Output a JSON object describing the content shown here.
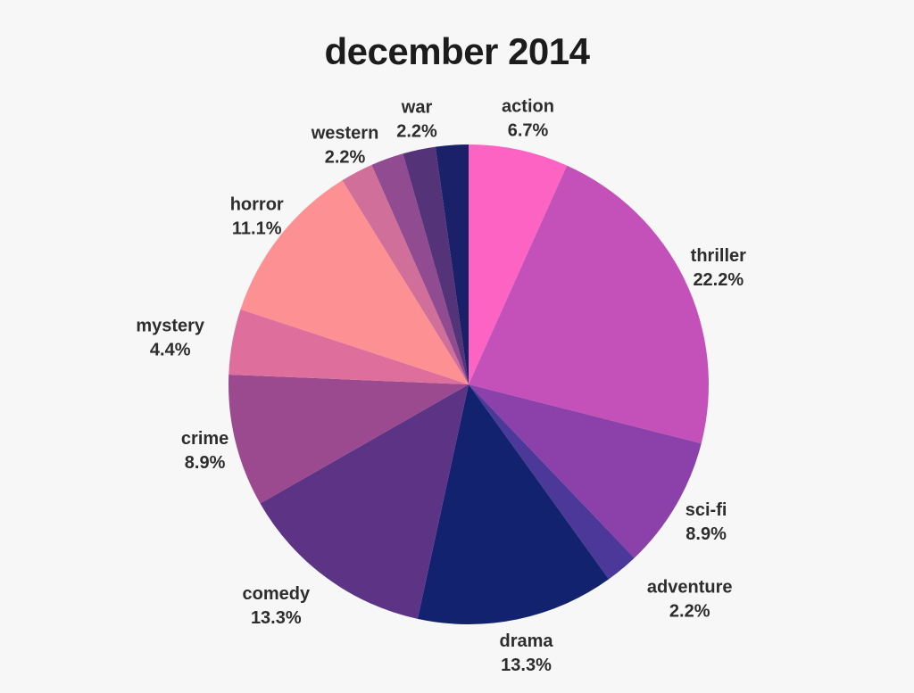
{
  "chart_data": {
    "type": "pie",
    "title": "december 2014",
    "background": "#F7F7F8",
    "text_color": "#2D2D2D",
    "start_angle_deg": 90,
    "direction": "clockwise",
    "legend": "none",
    "slices": [
      {
        "label": "action",
        "pct_text": "6.7%",
        "value": 6.7,
        "color": "#FC63C2"
      },
      {
        "label": "thriller",
        "pct_text": "22.2%",
        "value": 22.2,
        "color": "#C351B9"
      },
      {
        "label": "sci-fi",
        "pct_text": "8.9%",
        "value": 8.9,
        "color": "#8B41A9"
      },
      {
        "label": "adventure",
        "pct_text": "2.2%",
        "value": 2.2,
        "color": "#4C3899"
      },
      {
        "label": "drama",
        "pct_text": "13.3%",
        "value": 13.3,
        "color": "#12226E"
      },
      {
        "label": "comedy",
        "pct_text": "13.3%",
        "value": 13.3,
        "color": "#5D3386"
      },
      {
        "label": "crime",
        "pct_text": "8.9%",
        "value": 8.9,
        "color": "#9B4A90"
      },
      {
        "label": "mystery",
        "pct_text": "4.4%",
        "value": 4.4,
        "color": "#DE6F9C"
      },
      {
        "label": "horror",
        "pct_text": "11.1%",
        "value": 11.1,
        "color": "#FC9092"
      },
      {
        "label": "",
        "pct_text": "",
        "value": 2.2,
        "color": "#D16F9B"
      },
      {
        "label": "",
        "pct_text": "",
        "value": 2.2,
        "color": "#914B91"
      },
      {
        "label": "western",
        "pct_text": "2.2%",
        "value": 2.2,
        "color": "#543379"
      },
      {
        "label": "war",
        "pct_text": "2.2%",
        "value": 2.2,
        "color": "#1A2169"
      }
    ]
  }
}
